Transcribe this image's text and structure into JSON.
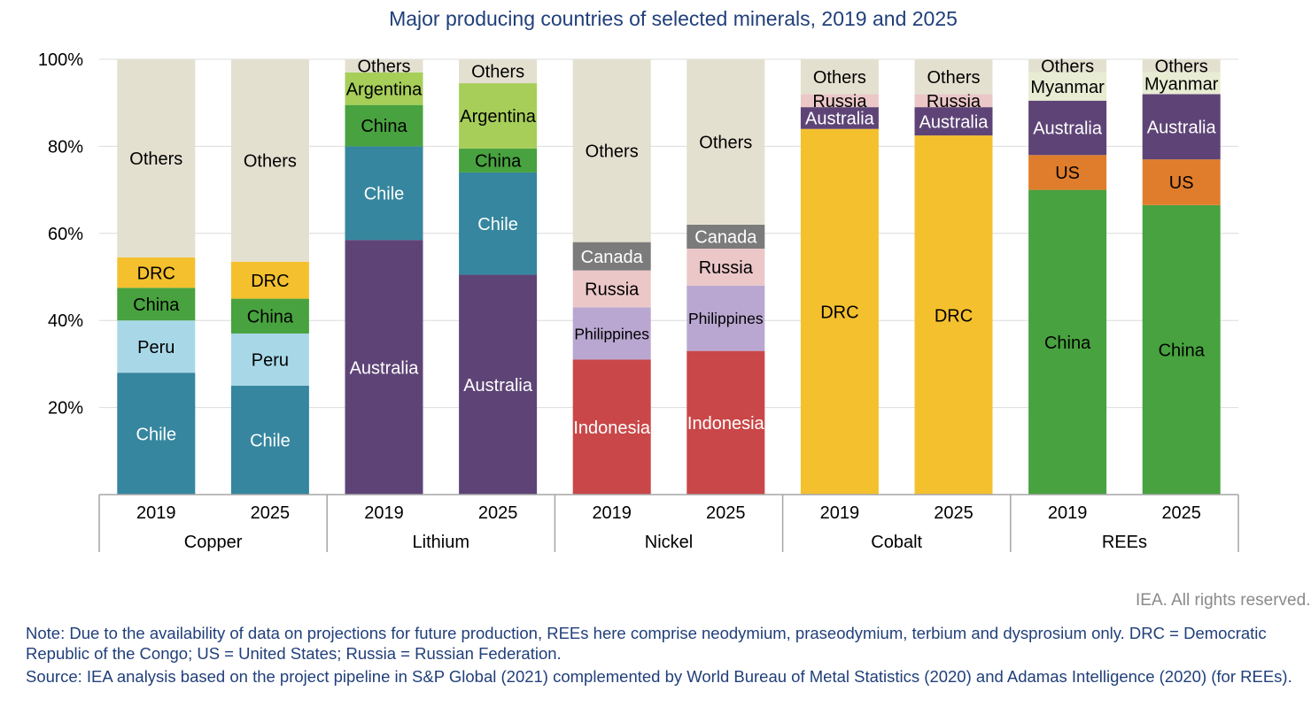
{
  "chart_data": {
    "type": "bar",
    "stacked": true,
    "title": "Major producing countries of selected minerals, 2019 and 2025",
    "xlabel": "",
    "ylabel": "",
    "ylim": [
      0,
      100
    ],
    "yticks": [
      "20%",
      "40%",
      "60%",
      "80%",
      "100%"
    ],
    "grid": true,
    "groups": [
      {
        "name": "Copper",
        "bars": [
          {
            "year": "2019",
            "segments": [
              {
                "country": "Chile",
                "value": 28
              },
              {
                "country": "Peru",
                "value": 12
              },
              {
                "country": "China",
                "value": 7.5
              },
              {
                "country": "DRC",
                "value": 7
              },
              {
                "country": "Others",
                "value": 45.5
              }
            ]
          },
          {
            "year": "2025",
            "segments": [
              {
                "country": "Chile",
                "value": 25
              },
              {
                "country": "Peru",
                "value": 12
              },
              {
                "country": "China",
                "value": 8
              },
              {
                "country": "DRC",
                "value": 8.5
              },
              {
                "country": "Others",
                "value": 46.5
              }
            ]
          }
        ]
      },
      {
        "name": "Lithium",
        "bars": [
          {
            "year": "2019",
            "segments": [
              {
                "country": "Australia",
                "value": 58.5
              },
              {
                "country": "Chile",
                "value": 21.5
              },
              {
                "country": "China",
                "value": 9.5
              },
              {
                "country": "Argentina",
                "value": 7.5
              },
              {
                "country": "Others",
                "value": 3
              }
            ]
          },
          {
            "year": "2025",
            "segments": [
              {
                "country": "Australia",
                "value": 50.5
              },
              {
                "country": "Chile",
                "value": 23.5
              },
              {
                "country": "China",
                "value": 5.5
              },
              {
                "country": "Argentina",
                "value": 15
              },
              {
                "country": "Others",
                "value": 5.5
              }
            ]
          }
        ]
      },
      {
        "name": "Nickel",
        "bars": [
          {
            "year": "2019",
            "segments": [
              {
                "country": "Indonesia",
                "value": 31
              },
              {
                "country": "Philippines",
                "value": 12
              },
              {
                "country": "Russia",
                "value": 8.5
              },
              {
                "country": "Canada",
                "value": 6.5
              },
              {
                "country": "Others",
                "value": 42
              }
            ]
          },
          {
            "year": "2025",
            "segments": [
              {
                "country": "Indonesia",
                "value": 33
              },
              {
                "country": "Philippines",
                "value": 15
              },
              {
                "country": "Russia",
                "value": 8.5
              },
              {
                "country": "Canada",
                "value": 5.5
              },
              {
                "country": "Others",
                "value": 38
              }
            ]
          }
        ]
      },
      {
        "name": "Cobalt",
        "bars": [
          {
            "year": "2019",
            "segments": [
              {
                "country": "DRC",
                "value": 84
              },
              {
                "country": "Australia",
                "value": 5
              },
              {
                "country": "Russia",
                "value": 3
              },
              {
                "country": "Others",
                "value": 8
              }
            ]
          },
          {
            "year": "2025",
            "segments": [
              {
                "country": "DRC",
                "value": 82.5
              },
              {
                "country": "Australia",
                "value": 6.5
              },
              {
                "country": "Russia",
                "value": 3
              },
              {
                "country": "Others",
                "value": 8
              }
            ]
          }
        ]
      },
      {
        "name": "REEs",
        "bars": [
          {
            "year": "2019",
            "segments": [
              {
                "country": "China",
                "value": 70
              },
              {
                "country": "US",
                "value": 8
              },
              {
                "country": "Australia",
                "value": 12.5
              },
              {
                "country": "Myanmar",
                "value": 6.5
              },
              {
                "country": "Others",
                "value": 3
              }
            ]
          },
          {
            "year": "2025",
            "segments": [
              {
                "country": "China",
                "value": 66.5
              },
              {
                "country": "US",
                "value": 10.5
              },
              {
                "country": "Australia",
                "value": 15
              },
              {
                "country": "Myanmar",
                "value": 5
              },
              {
                "country": "Others",
                "value": 3
              }
            ]
          }
        ]
      }
    ]
  },
  "colors": {
    "Chile": "#35869e",
    "Peru": "#a8d8e8",
    "China": "#48a23f",
    "DRC": "#f4c02e",
    "Others": "#e4e0d0",
    "Australia": "#5e4476",
    "Argentina": "#a6ce59",
    "Indonesia": "#c94748",
    "Philippines": "#b9a7d1",
    "Russia": "#ebc7c7",
    "Canada": "#7b7b7b",
    "US": "#e07d2c",
    "Myanmar": "#e7ecd3",
    "title_text": "#203f7a",
    "note_text": "#203f7a",
    "credit_text": "#8a8a8a",
    "axis_line": "#a6a6a6",
    "gridline": "#dcdcdc"
  },
  "label_colors": {
    "white": [
      "Chile",
      "Australia",
      "Indonesia",
      "Canada"
    ]
  },
  "credit": "IEA. All rights reserved.",
  "note": "Note: Due to the availability of data on projections for future production, REEs here comprise neodymium, praseodymium, terbium and dysprosium only. DRC = Democratic Republic of the Congo; US = United States; Russia = Russian Federation.",
  "source": "Source: IEA analysis based on the project pipeline in S&P Global (2021) complemented by World Bureau of Metal Statistics (2020) and Adamas Intelligence (2020) (for REEs)."
}
